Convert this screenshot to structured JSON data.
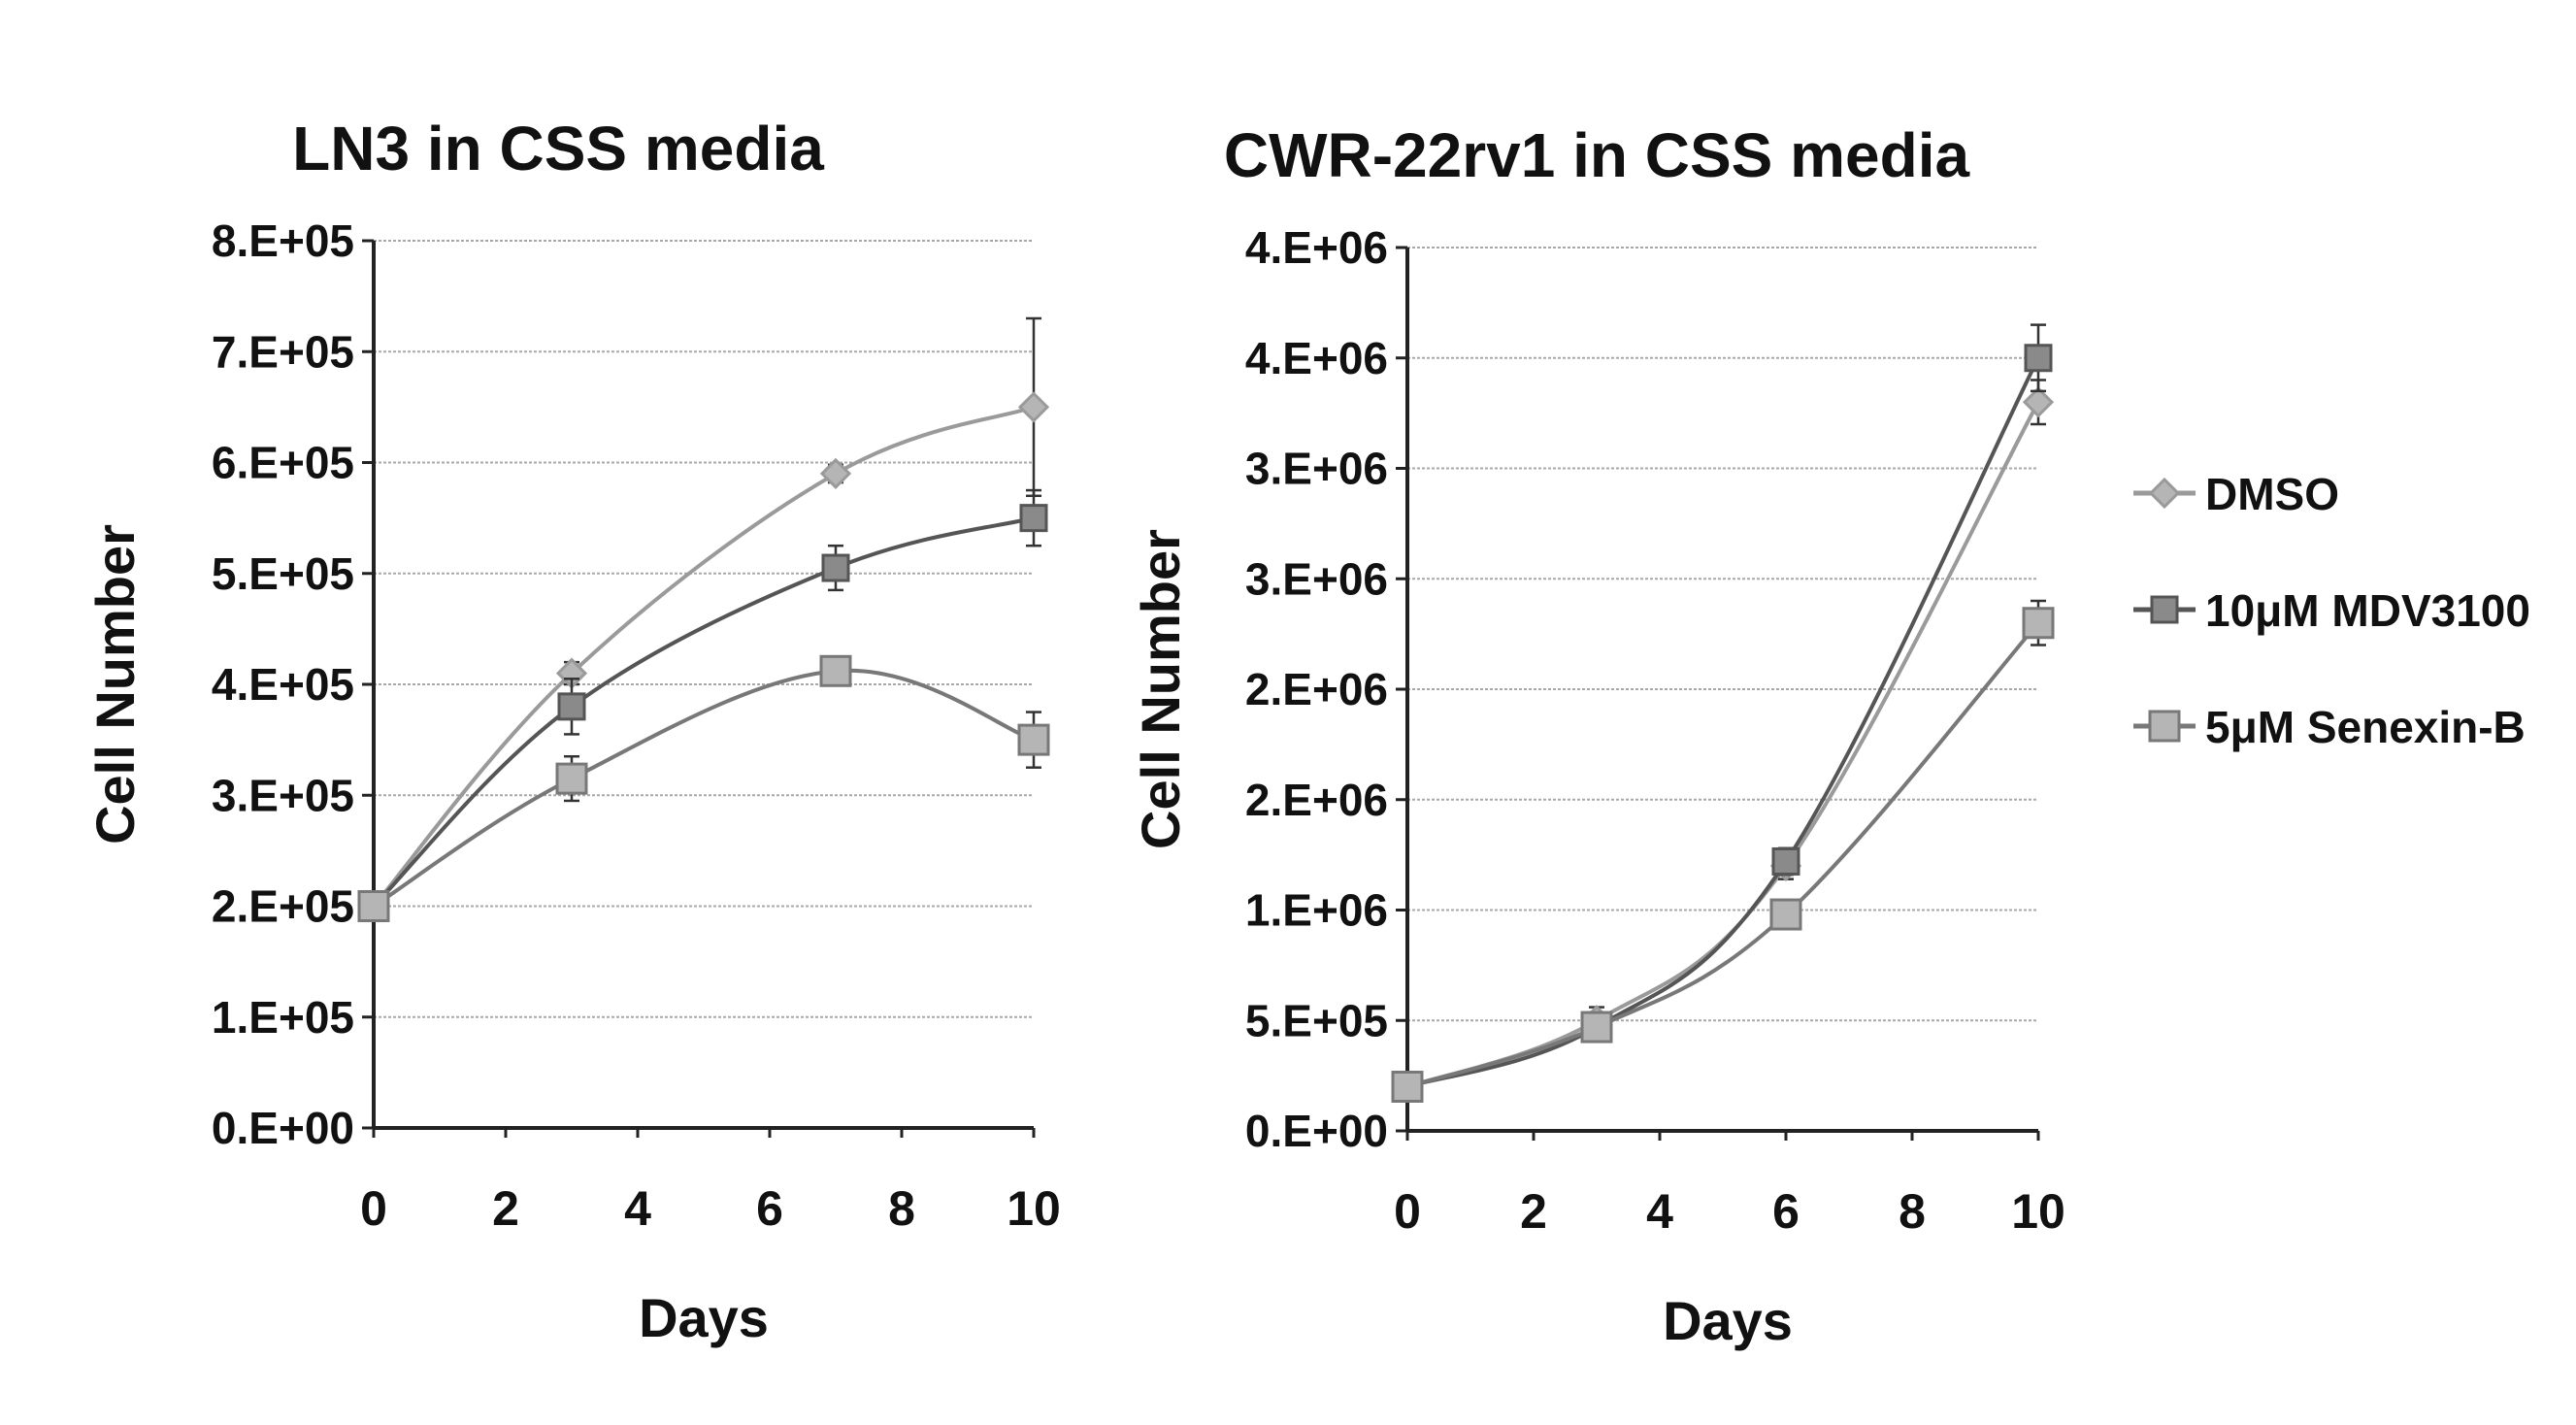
{
  "chart_data": [
    {
      "type": "line",
      "title": "LN3 in CSS media",
      "xlabel": "Days",
      "ylabel": "Cell Number",
      "xlim": [
        0,
        10
      ],
      "ylim": [
        0,
        800000
      ],
      "x_ticks": [
        0,
        2,
        4,
        6,
        8,
        10
      ],
      "x_tick_labels": [
        "0",
        "2",
        "4",
        "6",
        "8",
        "10"
      ],
      "y_ticks": [
        0,
        100000,
        200000,
        300000,
        400000,
        500000,
        600000,
        700000,
        800000
      ],
      "y_tick_labels": [
        "0.E+00",
        "1.E+05",
        "2.E+05",
        "3.E+05",
        "4.E+05",
        "5.E+05",
        "6.E+05",
        "7.E+05",
        "8.E+05"
      ],
      "grid": true,
      "x": [
        0,
        3,
        7,
        10
      ],
      "series": [
        {
          "name": "DMSO",
          "values": [
            200000,
            410000,
            590000,
            650000
          ],
          "errors": [
            5000,
            10000,
            8000,
            80000
          ]
        },
        {
          "name": "10μM MDV3100",
          "values": [
            200000,
            380000,
            505000,
            550000
          ],
          "errors": [
            5000,
            25000,
            20000,
            25000
          ]
        },
        {
          "name": "5μM Senexin-B",
          "values": [
            200000,
            315000,
            412000,
            350000
          ],
          "errors": [
            5000,
            20000,
            10000,
            25000
          ]
        }
      ]
    },
    {
      "type": "line",
      "title": "CWR-22rv1 in CSS media",
      "xlabel": "Days",
      "ylabel": "Cell Number",
      "xlim": [
        0,
        10
      ],
      "ylim": [
        0,
        4000000
      ],
      "x_ticks": [
        0,
        2,
        4,
        6,
        8,
        10
      ],
      "x_tick_labels": [
        "0",
        "2",
        "4",
        "6",
        "8",
        "10"
      ],
      "y_ticks": [
        0,
        500000,
        1000000,
        1500000,
        2000000,
        2500000,
        3000000,
        3500000,
        4000000
      ],
      "y_tick_labels": [
        "0.E+00",
        "5.E+05",
        "1.E+06",
        "2.E+06",
        "2.E+06",
        "3.E+06",
        "3.E+06",
        "4.E+06",
        "4.E+06"
      ],
      "grid": true,
      "x": [
        0,
        3,
        6,
        10
      ],
      "series": [
        {
          "name": "DMSO",
          "values": [
            200000,
            500000,
            1200000,
            3300000
          ],
          "errors": [
            20000,
            60000,
            60000,
            100000
          ]
        },
        {
          "name": "10μM MDV3100",
          "values": [
            200000,
            470000,
            1220000,
            3500000
          ],
          "errors": [
            20000,
            50000,
            60000,
            150000
          ]
        },
        {
          "name": "5μM Senexin-B",
          "values": [
            200000,
            470000,
            980000,
            2300000
          ],
          "errors": [
            20000,
            50000,
            50000,
            100000
          ]
        }
      ]
    }
  ],
  "legend": {
    "placement": "right",
    "entries": [
      "DMSO",
      "10μM MDV3100",
      "5μM Senexin-B"
    ]
  },
  "colors": {
    "dmso": "#9a9a9a",
    "mdv3100": "#555555",
    "senexin": "#787878",
    "marker_fill": "#b5b5b5",
    "grid": "#a8a8a8",
    "axis": "#222222"
  }
}
